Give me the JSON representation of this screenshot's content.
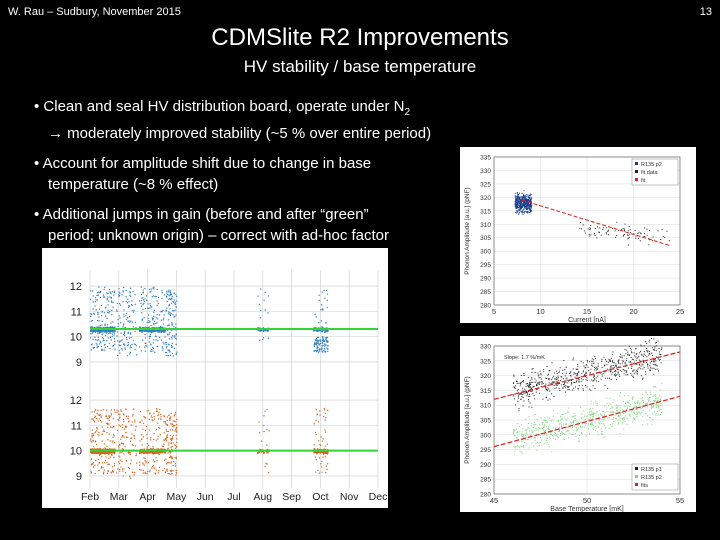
{
  "header": {
    "left": "W. Rau – Sudbury, November 2015",
    "page_number": "13"
  },
  "title": "CDMSlite R2 Improvements",
  "subtitle": "HV stability / base temperature",
  "bullets": [
    {
      "line1": "• Clean and seal HV distribution board, operate under N",
      "sub": "2",
      "line2": "→ moderately improved stability (~5 % over entire period)"
    },
    {
      "line1": "• Account for amplitude shift due to change in base",
      "line2": "temperature (~8 % effect)"
    },
    {
      "line1": "• Additional jumps in gain (before and after “green”",
      "line2": "period; unknown origin) – correct with ad-hoc factor"
    }
  ],
  "colors": {
    "blue": "#2f7fc1",
    "orange": "#d2651f",
    "green": "#34d234",
    "red": "#dd2222",
    "black_points": "#222222",
    "light_green_points": "#7cd37c"
  },
  "chart_data": [
    {
      "type": "scatter",
      "title": "",
      "xlabel": "",
      "ylabel": "",
      "x_tick_labels": [
        "Feb",
        "Mar",
        "Apr",
        "May",
        "Jun",
        "Jul",
        "Aug",
        "Sep",
        "Oct",
        "Nov",
        "Dec"
      ],
      "panels": [
        {
          "name": "upper",
          "color": "blue",
          "y_tick_labels": [
            "12",
            "11",
            "10",
            "9"
          ],
          "ylim": [
            8.6,
            12.4
          ],
          "reference_line": 10.3
        },
        {
          "name": "lower",
          "color": "orange",
          "y_tick_labels": [
            "12",
            "11",
            "10",
            "9"
          ],
          "ylim": [
            8.6,
            12.4
          ],
          "reference_line": 10.0
        }
      ]
    },
    {
      "type": "scatter",
      "xlabel": "Current [nA]",
      "ylabel": "Phonon Amplitude [a.u.] (pNF)",
      "xlim": [
        5,
        25
      ],
      "ylim": [
        280,
        335
      ],
      "x_tick_labels": [
        "5",
        "10",
        "15",
        "20",
        "25"
      ],
      "y_tick_labels": [
        "335",
        "330",
        "325",
        "320",
        "315",
        "310",
        "305",
        "300",
        "295",
        "290",
        "285",
        "280"
      ],
      "legend": [
        "R135 p2",
        "fit data",
        "fit"
      ],
      "legend_position": "top-right",
      "fit_line": {
        "x": [
          8,
          24
        ],
        "y": [
          319,
          302
        ]
      }
    },
    {
      "type": "scatter",
      "xlabel": "Base Temperature [mK]",
      "ylabel": "Phonon Amplitude [a.u.] (pNF)",
      "xlim": [
        45,
        55
      ],
      "ylim": [
        280,
        330
      ],
      "x_tick_labels": [
        "45",
        "50",
        "55"
      ],
      "y_tick_labels": [
        "330",
        "325",
        "320",
        "315",
        "310",
        "305",
        "300",
        "295",
        "290",
        "285",
        "280"
      ],
      "legend": [
        "R135 p1",
        "R135 p2",
        "fits"
      ],
      "legend_position": "bottom-right",
      "annotation": "Slope: 1.7 %/mK",
      "fit_lines": [
        {
          "x": [
            45,
            55
          ],
          "y": [
            312,
            328
          ]
        },
        {
          "x": [
            45,
            55
          ],
          "y": [
            296,
            313
          ]
        }
      ]
    }
  ]
}
